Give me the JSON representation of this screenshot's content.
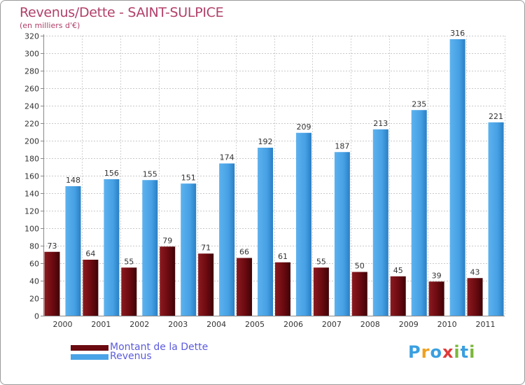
{
  "chart_data": {
    "type": "bar",
    "title": "Revenus/Dette - SAINT-SULPICE",
    "subtitle": "(en milliers d'€)",
    "xlabel": "",
    "ylabel": "",
    "ylim": [
      0,
      320
    ],
    "yticks": [
      "0",
      "20",
      "40",
      "60",
      "80",
      "100",
      "120",
      "140",
      "160",
      "180",
      "200",
      "220",
      "240",
      "260",
      "280",
      "300",
      "320"
    ],
    "categories": [
      "2000",
      "2001",
      "2002",
      "2003",
      "2004",
      "2005",
      "2006",
      "2007",
      "2008",
      "2009",
      "2010",
      "2011"
    ],
    "grid": true,
    "legend_position": "bottom-left",
    "series": [
      {
        "name": "Montant de la Dette",
        "color": "#7a1218",
        "values": [
          73,
          64,
          55,
          79,
          71,
          66,
          61,
          55,
          50,
          45,
          39,
          43
        ]
      },
      {
        "name": "Revenus",
        "color": "#4aa3e6",
        "values": [
          148,
          156,
          155,
          151,
          174,
          192,
          209,
          187,
          213,
          235,
          316,
          221
        ]
      }
    ]
  },
  "legend": {
    "debt_label": "Montant de la Dette",
    "revenue_label": "Revenus",
    "debt_color": "#6b0a10",
    "revenue_color": "#4aa3e6"
  },
  "logo": {
    "letters": [
      "P",
      "r",
      "o",
      "x",
      "i",
      "t",
      "i"
    ],
    "colors": [
      "#3a9fe0",
      "#f0a020",
      "#3a9fe0",
      "#e03a3a",
      "#7ab83a",
      "#3a9fe0",
      "#7ab83a"
    ]
  }
}
